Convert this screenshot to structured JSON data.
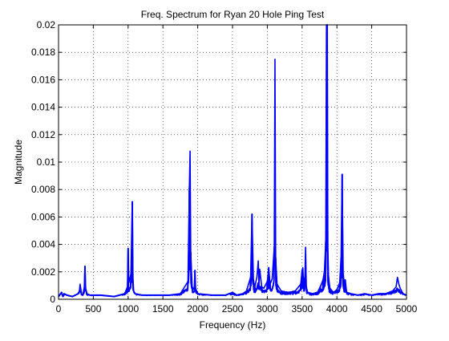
{
  "chart_data": {
    "type": "line",
    "title": "Freq. Spectrum for Ryan 20 Hole Ping Test",
    "xlabel": "Frequency (Hz)",
    "ylabel": "Magnitude",
    "xlim": [
      0,
      5000
    ],
    "ylim": [
      0,
      0.02
    ],
    "xticks": [
      0,
      500,
      1000,
      1500,
      2000,
      2500,
      3000,
      3500,
      4000,
      4500,
      5000
    ],
    "xtick_labels": [
      "0",
      "500",
      "1000",
      "1500",
      "2000",
      "2500",
      "3000",
      "3500",
      "4000",
      "4500",
      "5000"
    ],
    "yticks": [
      0,
      0.002,
      0.004,
      0.006,
      0.008,
      0.01,
      0.012,
      0.014,
      0.016,
      0.018,
      0.02
    ],
    "ytick_labels": [
      "0",
      "0.002",
      "0.004",
      "0.006",
      "0.008",
      "0.01",
      "0.012",
      "0.014",
      "0.016",
      "0.018",
      "0.02"
    ],
    "grid": true,
    "line_color": "#0000ff",
    "baseline": 0.0003,
    "series": [
      {
        "x": [
          0,
          15,
          30,
          45,
          55,
          65,
          80,
          120,
          200,
          280,
          300,
          310,
          330,
          350,
          370,
          380,
          390,
          410,
          450,
          600,
          800,
          950,
          990,
          1000,
          1010,
          1040,
          1060,
          1070,
          1080,
          1100,
          1200,
          1400,
          1600,
          1750,
          1860,
          1880,
          1890,
          1900,
          1920,
          1950,
          1960,
          1970,
          2000,
          2200,
          2400,
          2500,
          2530,
          2560,
          2650,
          2700,
          2760,
          2780,
          2800,
          2820,
          2850,
          2870,
          2880,
          2890,
          2920,
          2950,
          3000,
          3020,
          3040,
          3070,
          3100,
          3110,
          3120,
          3140,
          3200,
          3300,
          3400,
          3480,
          3500,
          3510,
          3520,
          3540,
          3550,
          3560,
          3580,
          3650,
          3720,
          3760,
          3800,
          3820,
          3840,
          3850,
          3860,
          3870,
          3880,
          3900,
          3950,
          4000,
          4040,
          4060,
          4075,
          4090,
          4110,
          4120,
          4140,
          4200,
          4300,
          4400,
          4500,
          4600,
          4700,
          4800,
          4850,
          4870,
          4890,
          4910,
          4950,
          5000
        ],
        "y": [
          0.0002,
          0.0003,
          0.0004,
          0.0005,
          0.0003,
          0.0002,
          0.0004,
          0.0003,
          0.0002,
          0.0004,
          0.0006,
          0.0011,
          0.0004,
          0.0003,
          0.0009,
          0.0024,
          0.0008,
          0.0004,
          0.0003,
          0.0003,
          0.0002,
          0.0004,
          0.0009,
          0.0037,
          0.0012,
          0.0018,
          0.0071,
          0.0015,
          0.0006,
          0.0004,
          0.0003,
          0.0003,
          0.0003,
          0.0004,
          0.0013,
          0.0081,
          0.0108,
          0.0034,
          0.0009,
          0.0007,
          0.0021,
          0.0008,
          0.0004,
          0.0003,
          0.0003,
          0.0005,
          0.0004,
          0.0003,
          0.0004,
          0.0006,
          0.0016,
          0.0062,
          0.0014,
          0.0009,
          0.0016,
          0.0028,
          0.001,
          0.0022,
          0.0009,
          0.0008,
          0.0013,
          0.0023,
          0.0011,
          0.0015,
          0.0038,
          0.0175,
          0.003,
          0.0011,
          0.0006,
          0.0005,
          0.0006,
          0.0011,
          0.0021,
          0.0023,
          0.0012,
          0.0016,
          0.0038,
          0.0009,
          0.0005,
          0.0004,
          0.0005,
          0.0009,
          0.0014,
          0.002,
          0.0042,
          0.02,
          0.02,
          0.0038,
          0.0016,
          0.0008,
          0.0005,
          0.0007,
          0.0012,
          0.003,
          0.0091,
          0.0019,
          0.0009,
          0.0014,
          0.0005,
          0.0004,
          0.0003,
          0.0004,
          0.0003,
          0.0004,
          0.0004,
          0.0006,
          0.0009,
          0.0016,
          0.0011,
          0.0008,
          0.0004,
          0.0003
        ]
      }
    ]
  }
}
